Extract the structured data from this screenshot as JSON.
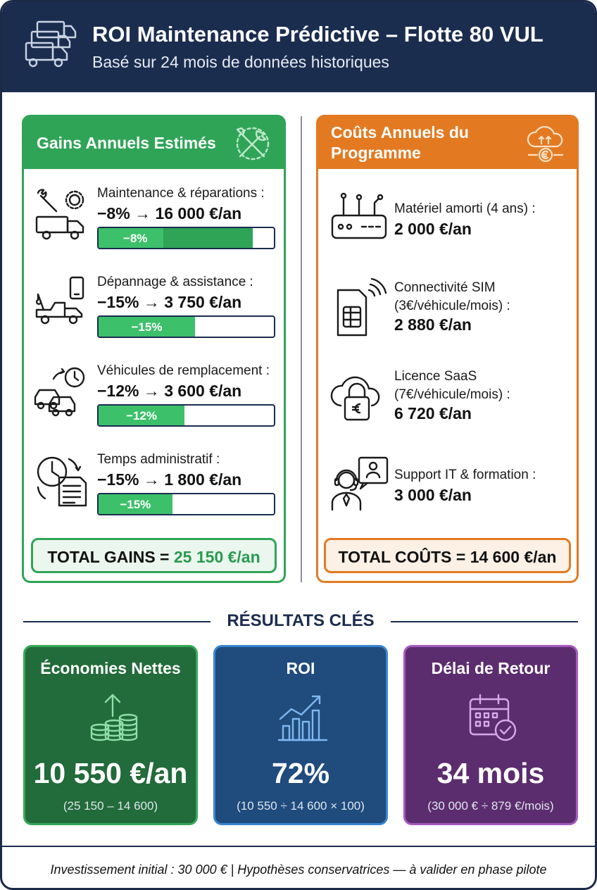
{
  "header": {
    "title": "ROI Maintenance Prédictive – Flotte 80 VUL",
    "subtitle": "Basé sur 24 mois de données historiques",
    "icon": "fleet-vans-icon"
  },
  "gains": {
    "title": "Gains Annuels Estimés",
    "icon": "wrench-screwdriver-icon",
    "items": [
      {
        "label": "Maintenance & réparations :",
        "value": "−8% → 16 000 €/an",
        "bar_label": "−8%",
        "bar_fill": 0.88,
        "icon": "truck-wrench-gear-icon"
      },
      {
        "label": "Dépannage & assistance :",
        "value": "−15% → 3 750 €/an",
        "bar_label": "−15%",
        "bar_fill": 0.55,
        "icon": "tow-truck-phone-icon"
      },
      {
        "label": "Véhicules de remplacement :",
        "value": "−12% → 3 600 €/an",
        "bar_label": "−12%",
        "bar_fill": 0.49,
        "icon": "cars-clock-icon"
      },
      {
        "label": "Temps administratif :",
        "value": "−15% → 1 800 €/an",
        "bar_label": "−15%",
        "bar_fill": 0.42,
        "icon": "clock-document-icon"
      }
    ],
    "total_label": "TOTAL GAINS = ",
    "total_value": "25 150 €/an"
  },
  "costs": {
    "title": "Coûts Annuels du Programme",
    "icon": "cloud-euro-icon",
    "items": [
      {
        "label_lines": [
          "Matériel amorti (4 ans) :"
        ],
        "value": "2 000 €/an",
        "icon": "router-device-icon"
      },
      {
        "label_lines": [
          "Connectivité SIM",
          "(3€/véhicule/mois) :"
        ],
        "value": "2 880 €/an",
        "icon": "sim-card-icon"
      },
      {
        "label_lines": [
          "Licence SaaS",
          "(7€/véhicule/mois) :"
        ],
        "value": "6 720 €/an",
        "icon": "cloud-lock-euro-icon"
      },
      {
        "label_lines": [
          "Support IT & formation :"
        ],
        "value": "3 000 €/an",
        "icon": "headset-support-icon"
      }
    ],
    "total_label": "TOTAL COÛTS = 14 600 €/an"
  },
  "results": {
    "title": "RÉSULTATS CLÉS",
    "cards": [
      {
        "title": "Économies Nettes",
        "value": "10 550 €/an",
        "note": "(25 150 – 14 600)",
        "icon": "coins-arrow-up-icon"
      },
      {
        "title": "ROI",
        "value": "72%",
        "note": "(10 550 ÷ 14 600 × 100)",
        "icon": "growth-chart-icon"
      },
      {
        "title": "Délai de Retour",
        "value": "34 mois",
        "note": "(30 000 € ÷ 879 €/mois)",
        "icon": "calendar-check-icon"
      }
    ]
  },
  "footer": {
    "text": "Investissement initial : 30 000 € | Hypothèses conservatrices — à valider en phase pilote"
  },
  "colors": {
    "navy": "#1b2d4f",
    "green": "#2fa457",
    "orange": "#e37a22",
    "blue": "#1f4b7d",
    "purple": "#5c2d6e"
  }
}
